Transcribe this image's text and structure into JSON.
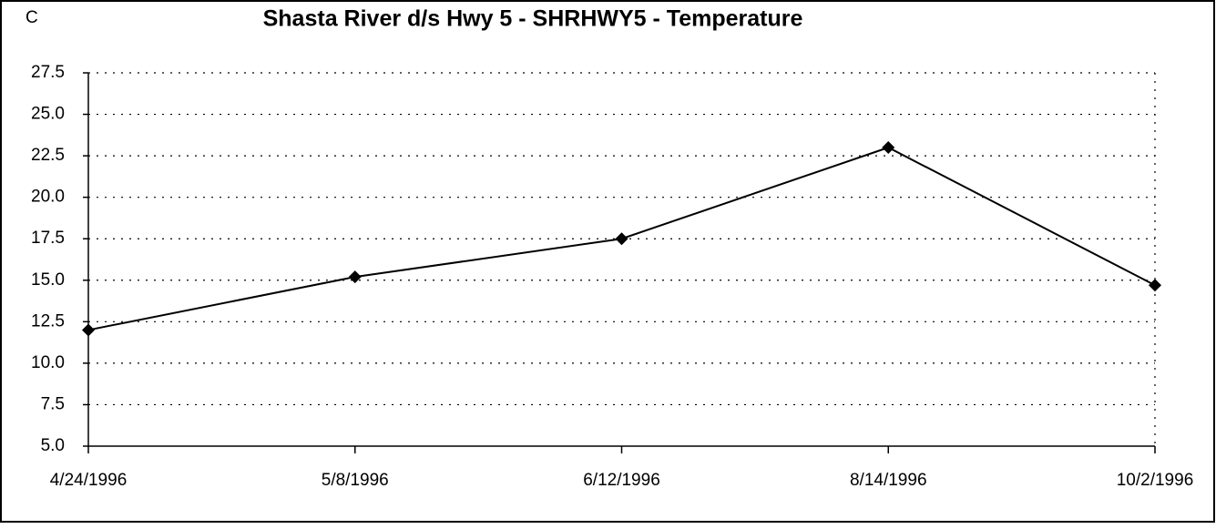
{
  "chart_data": {
    "type": "line",
    "title": "Shasta River d/s Hwy 5 -  SHRHWY5 - Temperature",
    "y_label": "C",
    "categories": [
      "4/24/1996",
      "5/8/1996",
      "6/12/1996",
      "8/14/1996",
      "10/2/1996"
    ],
    "series": [
      {
        "name": "Temperature",
        "color": "#000000",
        "values": [
          12.0,
          15.2,
          17.5,
          23.0,
          14.7
        ]
      }
    ],
    "ylim": [
      5,
      27.5
    ],
    "yticks": [
      {
        "value": 5,
        "label": "5.0"
      },
      7.5,
      {
        "value": 10,
        "label": "10.0"
      },
      12.5,
      {
        "value": 15,
        "label": "15.0"
      },
      17.5,
      {
        "value": 20,
        "label": "20.0"
      },
      22.5,
      {
        "value": 25,
        "label": "25.0"
      },
      27.5
    ],
    "grid": true
  }
}
